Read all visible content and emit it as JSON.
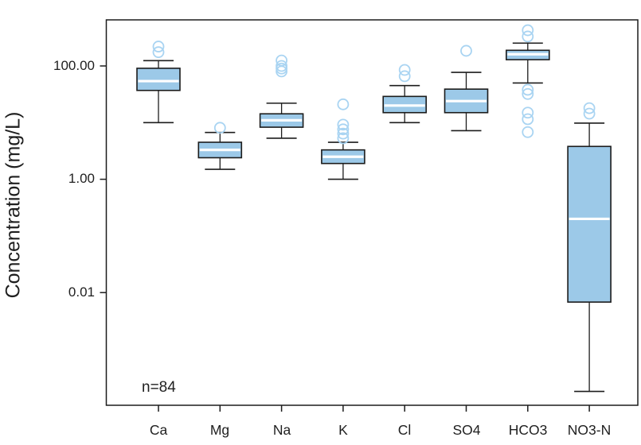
{
  "chart_data": {
    "type": "boxplot",
    "title": "",
    "xlabel": "",
    "ylabel": "Concentration (mg/L)",
    "yscale": "log",
    "ylim": [
      0.0001,
      650
    ],
    "yticks": [
      {
        "label": "100.00",
        "value": 100
      },
      {
        "label": "1.00",
        "value": 1
      },
      {
        "label": "0.01",
        "value": 0.01
      }
    ],
    "categories": [
      "Ca",
      "Mg",
      "Na",
      "K",
      "Cl",
      "SO4",
      "HCO3",
      "NO3-N"
    ],
    "annotation": "n=84",
    "grid": false,
    "legend": null,
    "series": [
      {
        "name": "Ca",
        "whisker_low": 10,
        "q1": 37,
        "median": 54,
        "q3": 91,
        "whisker_high": 124,
        "outliers": [
          175,
          220
        ]
      },
      {
        "name": "Mg",
        "whisker_low": 1.5,
        "q1": 2.4,
        "median": 3.3,
        "q3": 4.5,
        "whisker_high": 6.7,
        "outliers": [
          8.1
        ]
      },
      {
        "name": "Na",
        "whisker_low": 5.3,
        "q1": 8.3,
        "median": 11,
        "q3": 14.3,
        "whisker_high": 22,
        "outliers": [
          80,
          90,
          100,
          125
        ]
      },
      {
        "name": "K",
        "whisker_low": 1.0,
        "q1": 1.9,
        "median": 2.5,
        "q3": 3.3,
        "whisker_high": 4.5,
        "outliers": [
          5.3,
          6.4,
          7.6,
          9.2,
          21
        ]
      },
      {
        "name": "Cl",
        "whisker_low": 10,
        "q1": 15,
        "median": 20,
        "q3": 29,
        "whisker_high": 45,
        "outliers": [
          66,
          85
        ]
      },
      {
        "name": "SO4",
        "whisker_low": 7.2,
        "q1": 15,
        "median": 24,
        "q3": 39,
        "whisker_high": 77,
        "outliers": [
          185
        ]
      },
      {
        "name": "HCO3",
        "whisker_low": 50,
        "q1": 129,
        "median": 161,
        "q3": 189,
        "whisker_high": 253,
        "outliers": [
          427,
          331,
          38,
          32,
          15,
          11.5,
          6.8
        ]
      },
      {
        "name": "NO3-N",
        "whisker_low": 0.00018,
        "q1": 0.0068,
        "median": 0.2,
        "q3": 3.8,
        "whisker_high": 9.8,
        "outliers": [
          18,
          14.4
        ]
      }
    ]
  },
  "colors": {
    "background": "#ffffff",
    "box_fill": "#9CC9E8",
    "box_border": "#1c1c1c",
    "median_line": "#ffffff",
    "whisker": "#1c1c1c",
    "outlier_stroke": "#A9D4F2",
    "axis": "#1c1c1c",
    "text": "#1f1f1f"
  }
}
